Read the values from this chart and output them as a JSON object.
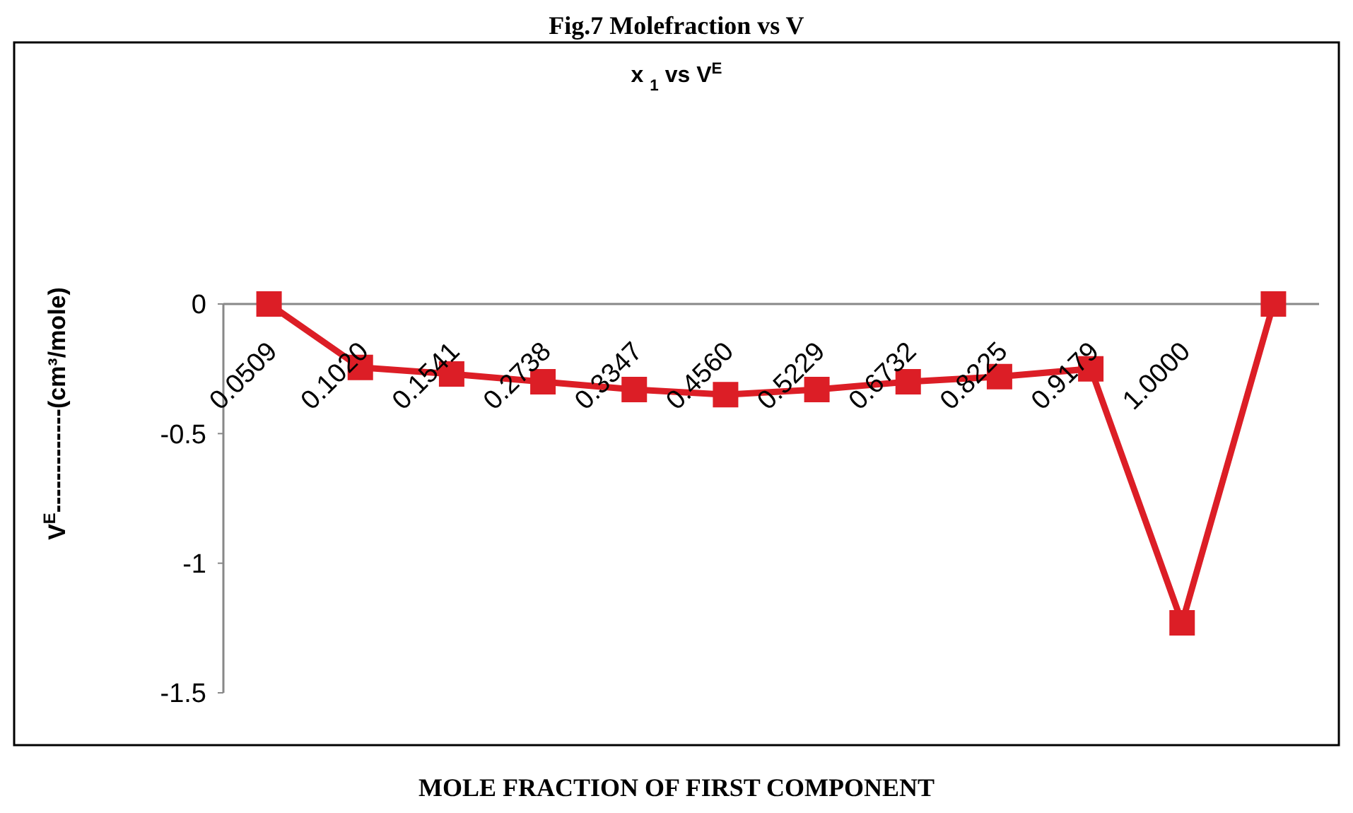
{
  "chart_data": {
    "type": "line",
    "title": "Fig.7 Molefraction vs V",
    "subtitle": "x $_{1}$ vs V$^{E}$",
    "xlabel": "MOLE FRACTION OF FIRST COMPONENT",
    "ylabel": "V$^{E}$-------------(cm³/mole)",
    "categories": [
      "0.0509",
      "0.1020",
      "0.1541",
      "0.2738",
      "0.3347",
      "0.4560",
      "0.5229",
      "0.6732",
      "0.8225",
      "0.9179",
      "1.0000",
      null
    ],
    "series": [
      {
        "color": "#dc1e26",
        "values": [
          0,
          -0.245,
          -0.27,
          -0.3,
          -0.33,
          -0.35,
          -0.33,
          -0.3,
          -0.28,
          -0.25,
          -1.23,
          0
        ]
      }
    ],
    "ylim": [
      -1.5,
      0
    ],
    "yticks": [
      {
        "value": 0,
        "label": "0"
      },
      {
        "value": -0.5,
        "label": "-0.5"
      },
      {
        "value": -1,
        "label": "-1"
      },
      {
        "value": -1.5,
        "label": "-1.5"
      }
    ],
    "marker": "square",
    "grid": false
  }
}
